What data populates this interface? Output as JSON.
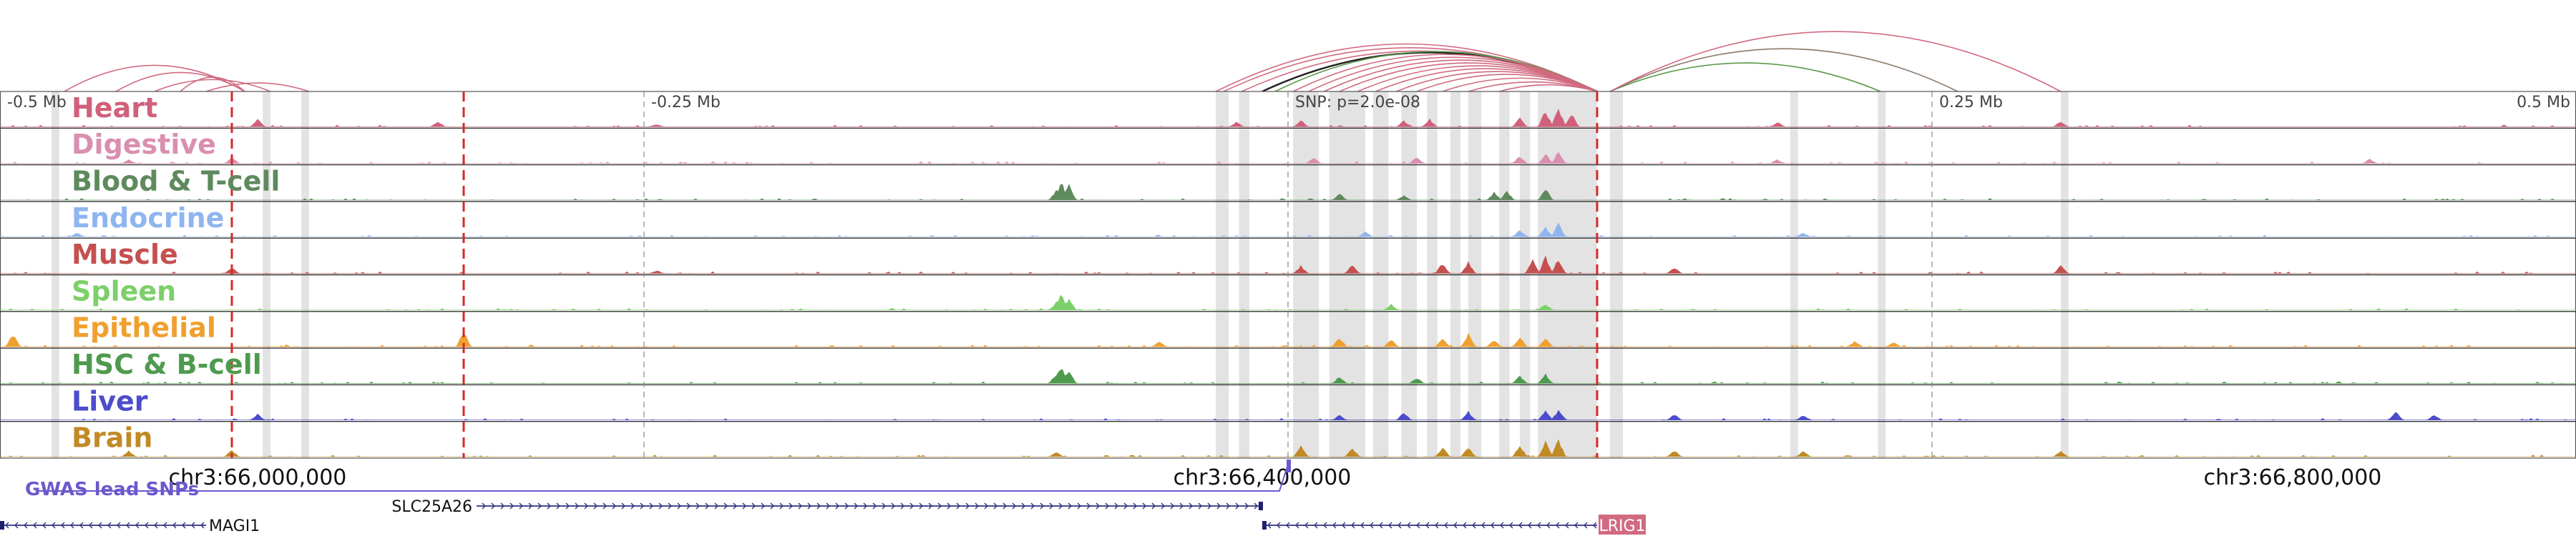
{
  "axis": {
    "ticks": [
      {
        "label": "-0.5 Mb",
        "pos": -0.5,
        "anchor": "start"
      },
      {
        "label": "-0.25 Mb",
        "pos": -0.25,
        "anchor": "start"
      },
      {
        "label": "SNP: p=2.0e-08",
        "pos": 0.0,
        "anchor": "start"
      },
      {
        "label": "0.25 Mb",
        "pos": 0.25,
        "anchor": "start"
      },
      {
        "label": "0.5 Mb",
        "pos": 0.5,
        "anchor": "end"
      }
    ]
  },
  "coordinates": [
    {
      "label": "chr3:66,000,000",
      "pos": -0.4
    },
    {
      "label": "chr3:66,400,000",
      "pos": -0.01
    },
    {
      "label": "chr3:66,800,000",
      "pos": 0.39
    }
  ],
  "tracks": [
    {
      "name": "Heart",
      "color": "#d1607a",
      "peaks": [
        [
          -0.4,
          0.45
        ],
        [
          -0.33,
          0.3
        ],
        [
          -0.245,
          0.12
        ],
        [
          -0.02,
          0.25
        ],
        [
          0.005,
          0.35
        ],
        [
          0.045,
          0.3
        ],
        [
          0.055,
          0.4
        ],
        [
          0.09,
          0.45
        ],
        [
          0.1,
          0.9
        ],
        [
          0.105,
          1.0
        ],
        [
          0.11,
          0.75
        ],
        [
          0.19,
          0.25
        ],
        [
          0.3,
          0.3
        ]
      ]
    },
    {
      "name": "Digestive",
      "color": "#d98fb0",
      "peaks": [
        [
          -0.45,
          0.2
        ],
        [
          -0.41,
          0.3
        ],
        [
          0.01,
          0.3
        ],
        [
          0.05,
          0.35
        ],
        [
          0.09,
          0.4
        ],
        [
          0.1,
          0.55
        ],
        [
          0.105,
          0.6
        ],
        [
          0.19,
          0.2
        ],
        [
          0.42,
          0.25
        ]
      ]
    },
    {
      "name": "Blood & T-cell",
      "color": "#5e8a5e",
      "peaks": [
        [
          -0.09,
          0.55
        ],
        [
          -0.088,
          1.0
        ],
        [
          -0.085,
          0.8
        ],
        [
          0.02,
          0.35
        ],
        [
          0.045,
          0.25
        ],
        [
          0.08,
          0.4
        ],
        [
          0.085,
          0.5
        ],
        [
          0.1,
          0.6
        ]
      ]
    },
    {
      "name": "Endocrine",
      "color": "#8fb5f0",
      "peaks": [
        [
          -0.47,
          0.2
        ],
        [
          0.03,
          0.25
        ],
        [
          0.09,
          0.35
        ],
        [
          0.1,
          0.5
        ],
        [
          0.105,
          0.7
        ],
        [
          0.2,
          0.2
        ]
      ]
    },
    {
      "name": "Muscle",
      "color": "#c55050",
      "peaks": [
        [
          -0.41,
          0.3
        ],
        [
          -0.245,
          0.15
        ],
        [
          0.005,
          0.4
        ],
        [
          0.025,
          0.5
        ],
        [
          0.06,
          0.55
        ],
        [
          0.07,
          0.6
        ],
        [
          0.095,
          0.7
        ],
        [
          0.1,
          0.9
        ],
        [
          0.105,
          0.8
        ],
        [
          0.15,
          0.3
        ],
        [
          0.3,
          0.4
        ]
      ]
    },
    {
      "name": "Spleen",
      "color": "#7ccf6a",
      "peaks": [
        [
          -0.09,
          0.4
        ],
        [
          -0.088,
          0.9
        ],
        [
          -0.085,
          0.6
        ],
        [
          0.04,
          0.3
        ],
        [
          0.1,
          0.35
        ]
      ]
    },
    {
      "name": "Epithelial",
      "color": "#f0a030",
      "peaks": [
        [
          -0.495,
          0.7
        ],
        [
          -0.32,
          0.85
        ],
        [
          -0.05,
          0.3
        ],
        [
          0.02,
          0.5
        ],
        [
          0.04,
          0.4
        ],
        [
          0.06,
          0.5
        ],
        [
          0.07,
          0.7
        ],
        [
          0.08,
          0.35
        ],
        [
          0.09,
          0.55
        ],
        [
          0.1,
          0.45
        ],
        [
          0.22,
          0.3
        ],
        [
          0.235,
          0.25
        ]
      ]
    },
    {
      "name": "HSC & B-cell",
      "color": "#4f9a4f",
      "peaks": [
        [
          -0.09,
          0.5
        ],
        [
          -0.088,
          1.0
        ],
        [
          -0.085,
          0.7
        ],
        [
          0.02,
          0.35
        ],
        [
          0.05,
          0.3
        ],
        [
          0.09,
          0.4
        ],
        [
          0.1,
          0.5
        ]
      ]
    },
    {
      "name": "Liver",
      "color": "#4c4ccc",
      "peaks": [
        [
          -0.4,
          0.3
        ],
        [
          0.02,
          0.25
        ],
        [
          0.045,
          0.4
        ],
        [
          0.07,
          0.45
        ],
        [
          0.1,
          0.5
        ],
        [
          0.105,
          0.55
        ],
        [
          0.15,
          0.3
        ],
        [
          0.2,
          0.25
        ],
        [
          0.43,
          0.5
        ],
        [
          0.445,
          0.3
        ]
      ]
    },
    {
      "name": "Brain",
      "color": "#c08a25",
      "peaks": [
        [
          -0.45,
          0.3
        ],
        [
          -0.41,
          0.35
        ],
        [
          -0.09,
          0.25
        ],
        [
          0.005,
          0.55
        ],
        [
          0.025,
          0.45
        ],
        [
          0.06,
          0.5
        ],
        [
          0.07,
          0.55
        ],
        [
          0.09,
          0.6
        ],
        [
          0.1,
          0.9
        ],
        [
          0.105,
          0.95
        ],
        [
          0.15,
          0.35
        ],
        [
          0.2,
          0.3
        ],
        [
          0.3,
          0.3
        ]
      ]
    }
  ],
  "gwas": {
    "label": "GWAS lead SNPs",
    "color": "#6a5acd",
    "snp_pos": 0.0
  },
  "genes": [
    {
      "name": "MAGI1",
      "start": -0.5,
      "end": -0.42,
      "strand": "-",
      "row": 2,
      "label_side": "end",
      "boxed": false
    },
    {
      "name": "SLC25A26",
      "start": -0.315,
      "end": -0.01,
      "strand": "+",
      "row": 1,
      "label_side": "start",
      "boxed": false
    },
    {
      "name": "LRIG1",
      "start": -0.01,
      "end": 0.12,
      "strand": "-",
      "row": 2,
      "label_side": "end",
      "boxed": true
    }
  ],
  "highlight_bands": [
    {
      "start": -0.028,
      "end": -0.023
    },
    {
      "start": -0.019,
      "end": -0.015
    },
    {
      "start": 0.002,
      "end": 0.012
    },
    {
      "start": 0.016,
      "end": 0.03
    },
    {
      "start": 0.033,
      "end": 0.039
    },
    {
      "start": 0.044,
      "end": 0.05
    },
    {
      "start": 0.054,
      "end": 0.058
    },
    {
      "start": 0.063,
      "end": 0.067
    },
    {
      "start": 0.07,
      "end": 0.075
    },
    {
      "start": 0.082,
      "end": 0.086
    },
    {
      "start": 0.09,
      "end": 0.094
    },
    {
      "start": 0.097,
      "end": 0.12
    },
    {
      "start": 0.125,
      "end": 0.13
    },
    {
      "start": 0.195,
      "end": 0.198
    },
    {
      "start": 0.229,
      "end": 0.232
    },
    {
      "start": 0.3,
      "end": 0.303
    },
    {
      "start": -0.48,
      "end": -0.477
    },
    {
      "start": -0.398,
      "end": -0.395
    },
    {
      "start": -0.383,
      "end": -0.38
    }
  ],
  "red_markers": [
    -0.41,
    -0.32,
    0.12
  ],
  "arcs": [
    {
      "from": -0.475,
      "to": -0.405,
      "color": "#d16a80",
      "h": 55
    },
    {
      "from": -0.455,
      "to": -0.405,
      "color": "#d16a80",
      "h": 40
    },
    {
      "from": -0.43,
      "to": -0.405,
      "color": "#d16a80",
      "h": 30
    },
    {
      "from": -0.44,
      "to": -0.395,
      "color": "#d16a80",
      "h": 25
    },
    {
      "from": -0.42,
      "to": -0.38,
      "color": "#d16a80",
      "h": 18
    },
    {
      "from": -0.028,
      "to": 0.12,
      "color": "#d16a80",
      "h": 100
    },
    {
      "from": -0.025,
      "to": 0.12,
      "color": "#d16a80",
      "h": 92
    },
    {
      "from": -0.018,
      "to": 0.12,
      "color": "#d16a80",
      "h": 85
    },
    {
      "from": -0.01,
      "to": 0.12,
      "color": "#222222",
      "h": 82
    },
    {
      "from": -0.005,
      "to": 0.12,
      "color": "#5a9a4a",
      "h": 84
    },
    {
      "from": 0.002,
      "to": 0.12,
      "color": "#d16a80",
      "h": 78
    },
    {
      "from": 0.008,
      "to": 0.12,
      "color": "#d16a80",
      "h": 72
    },
    {
      "from": 0.014,
      "to": 0.12,
      "color": "#d16a80",
      "h": 66
    },
    {
      "from": 0.02,
      "to": 0.12,
      "color": "#d16a80",
      "h": 60
    },
    {
      "from": 0.027,
      "to": 0.12,
      "color": "#d16a80",
      "h": 54
    },
    {
      "from": 0.034,
      "to": 0.12,
      "color": "#d16a80",
      "h": 48
    },
    {
      "from": 0.042,
      "to": 0.12,
      "color": "#d16a80",
      "h": 42
    },
    {
      "from": 0.05,
      "to": 0.12,
      "color": "#d16a80",
      "h": 36
    },
    {
      "from": 0.06,
      "to": 0.12,
      "color": "#d16a80",
      "h": 28
    },
    {
      "from": 0.07,
      "to": 0.12,
      "color": "#d16a80",
      "h": 20
    },
    {
      "from": 0.082,
      "to": 0.12,
      "color": "#d16a80",
      "h": 14
    },
    {
      "from": 0.125,
      "to": 0.23,
      "color": "#5a9a4a",
      "h": 60
    },
    {
      "from": 0.125,
      "to": 0.26,
      "color": "#8a7a6a",
      "h": 90
    },
    {
      "from": 0.125,
      "to": 0.3,
      "color": "#d16a80",
      "h": 126
    }
  ]
}
